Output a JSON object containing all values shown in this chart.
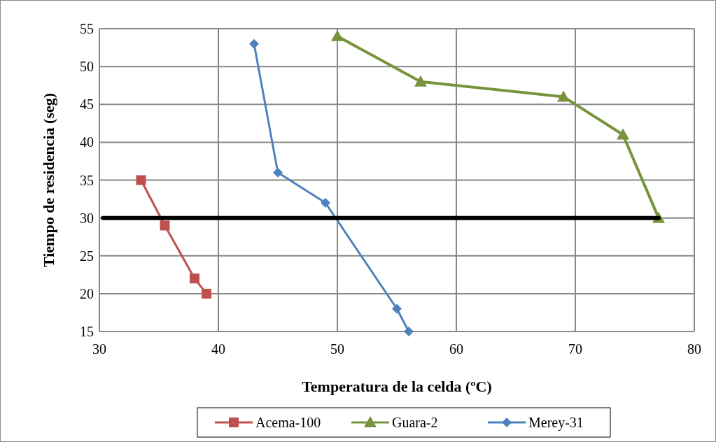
{
  "chart_data": {
    "type": "line",
    "xlabel": "Temperatura de la celda (ºC)",
    "ylabel": "Tiempo de residencia (seg)",
    "xlim": [
      30,
      80
    ],
    "xticks": [
      30,
      40,
      50,
      60,
      70,
      80
    ],
    "ylim": [
      15,
      55
    ],
    "yticks": [
      15,
      20,
      25,
      30,
      35,
      40,
      45,
      50,
      55
    ],
    "grid": true,
    "legend": "bottom",
    "series": [
      {
        "name": "Acema-100",
        "color": "#c0504d",
        "marker": "square",
        "x": [
          33.5,
          35.5,
          38,
          39
        ],
        "values": [
          35,
          29,
          22,
          20
        ]
      },
      {
        "name": "Guara-2",
        "color": "#77933c",
        "marker": "triangle",
        "x": [
          50,
          57,
          69,
          74,
          77
        ],
        "values": [
          54,
          48,
          46,
          41,
          30
        ]
      },
      {
        "name": "Merey-31",
        "color": "#4f81bd",
        "marker": "diamond",
        "x": [
          43,
          45,
          49,
          55,
          56
        ],
        "values": [
          53,
          36,
          32,
          18,
          15
        ]
      },
      {
        "color": "#000000",
        "marker": "none",
        "x": [
          30.3,
          77
        ],
        "values": [
          30,
          30
        ]
      }
    ]
  }
}
